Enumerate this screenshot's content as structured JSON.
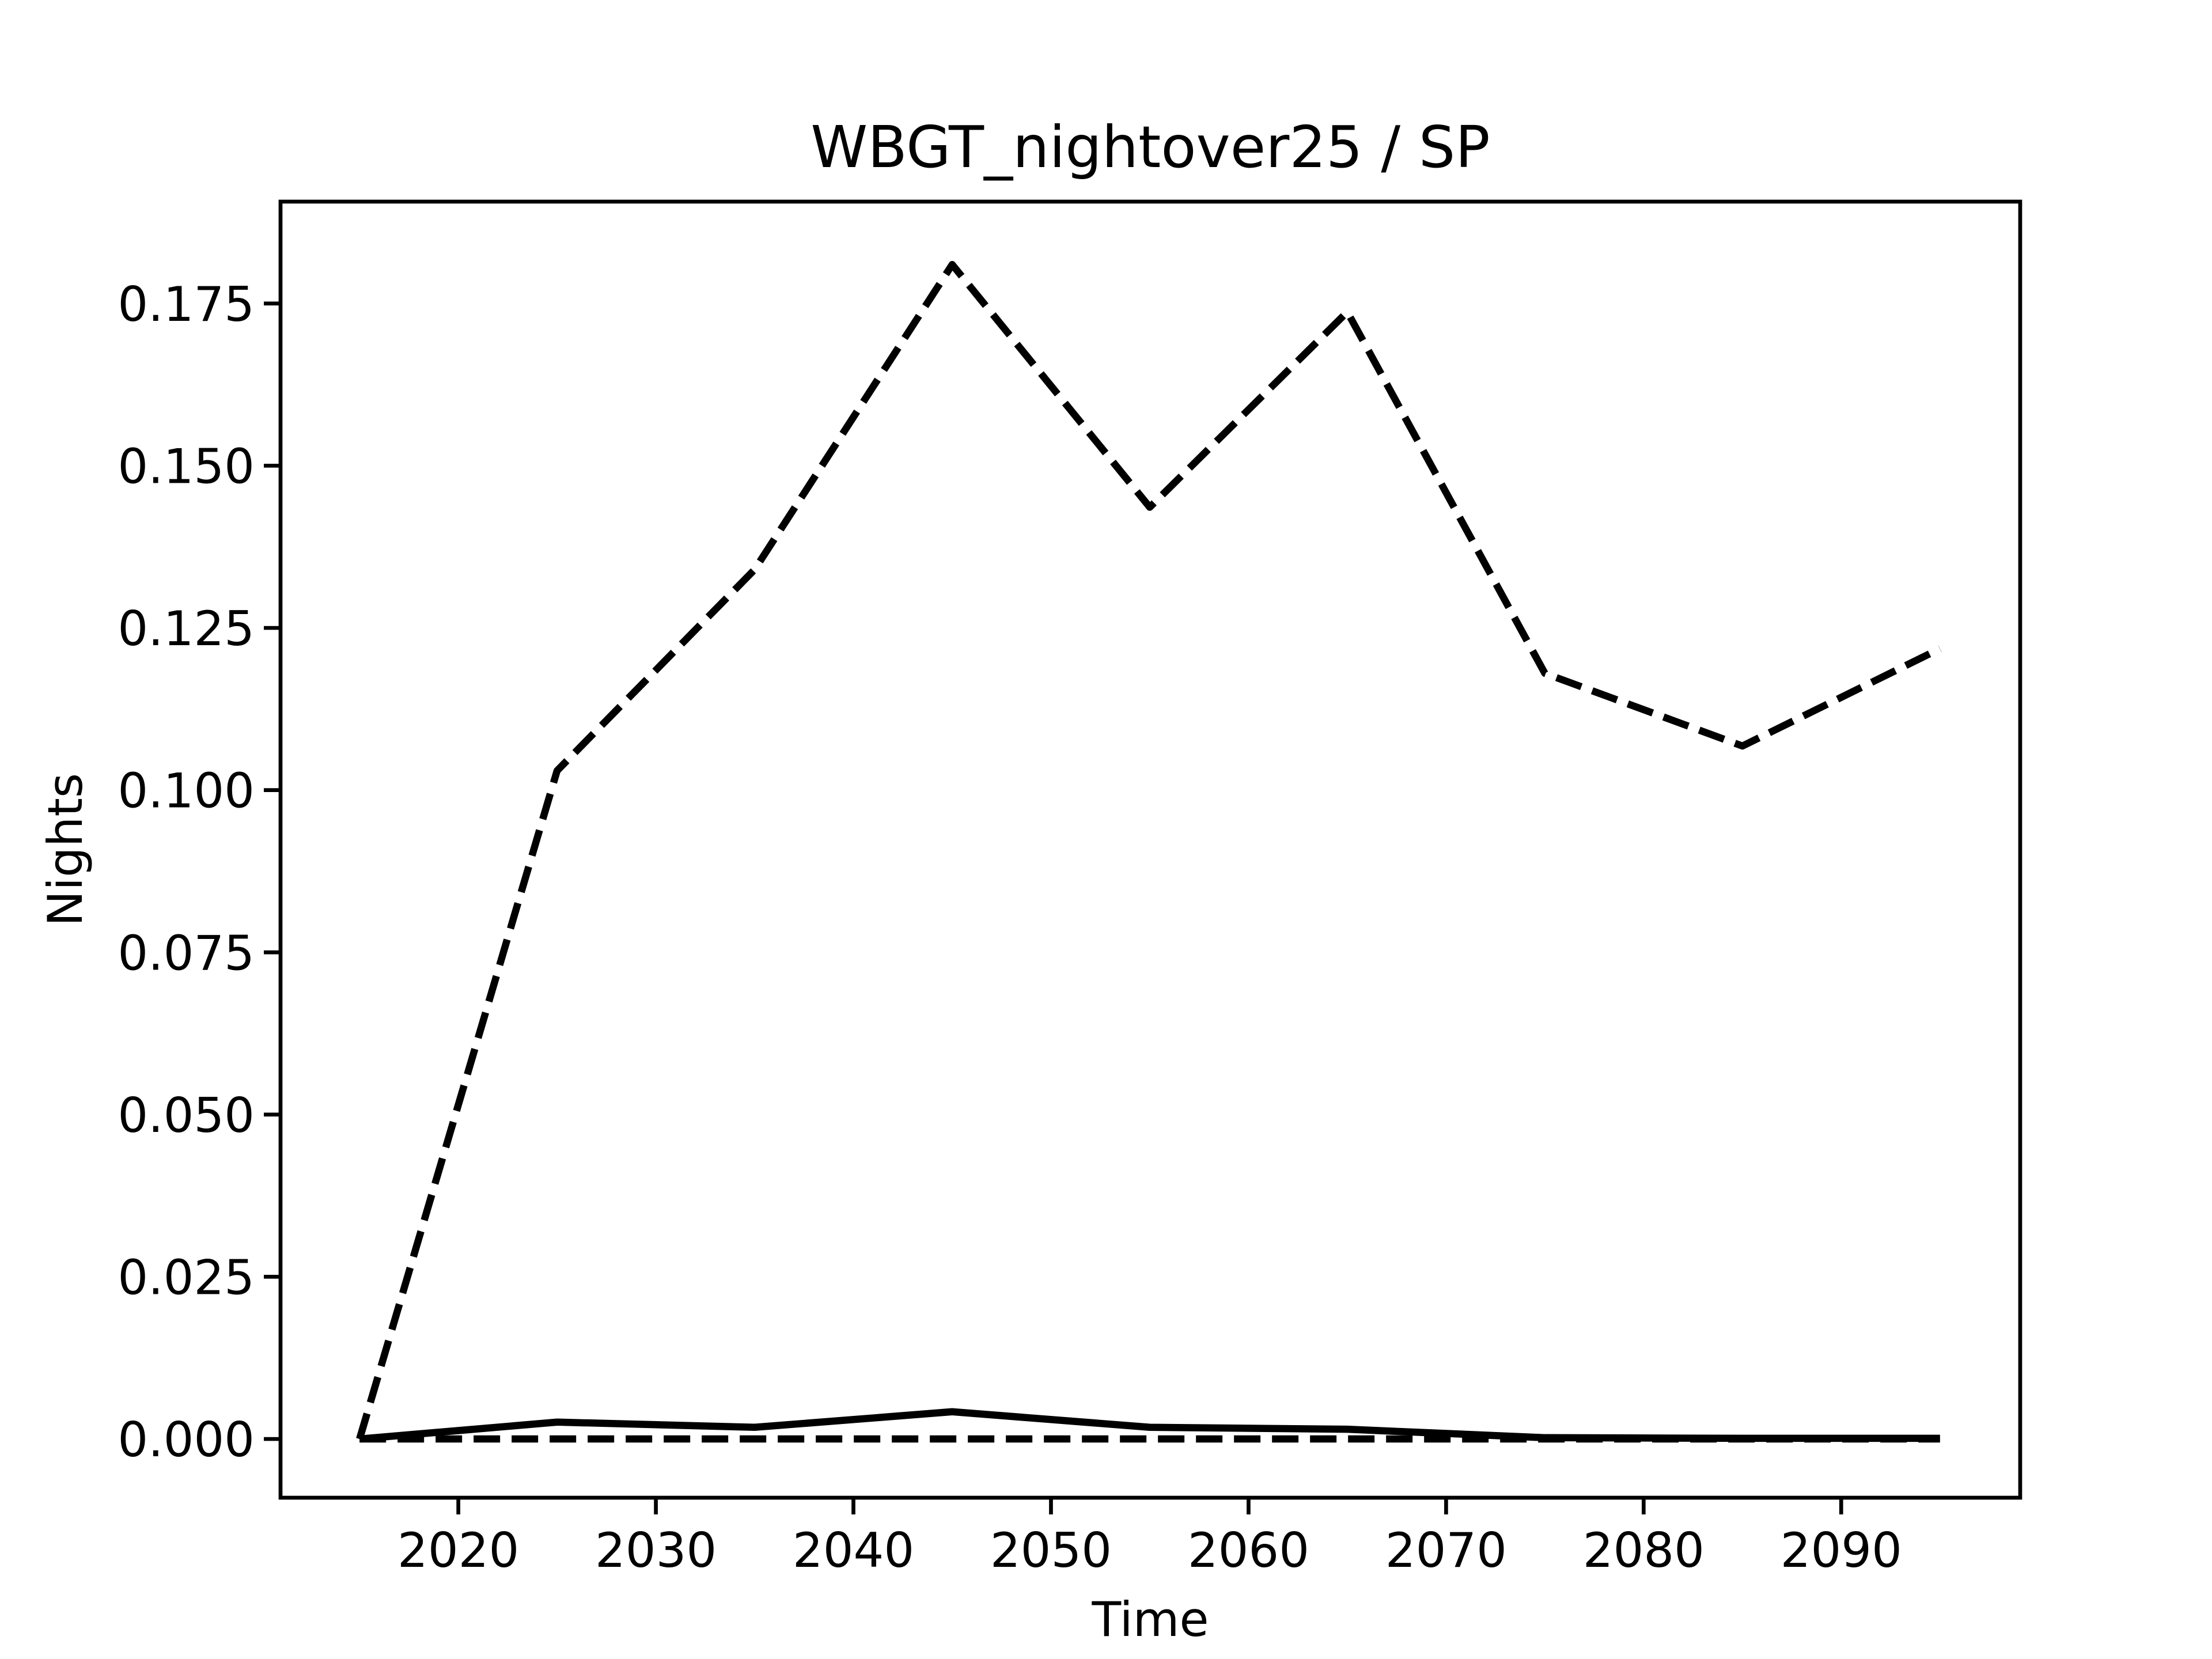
{
  "chart_data": {
    "type": "line",
    "title": "WBGT_nightover25 / SP",
    "xlabel": "Time",
    "ylabel": "Nights",
    "x": [
      2015,
      2025,
      2035,
      2045,
      2055,
      2065,
      2075,
      2085,
      2095
    ],
    "series": [
      {
        "color": "#000000",
        "dashed": true,
        "values": [
          0,
          0.103,
          0.134,
          0.181,
          0.1436,
          0.1737,
          0.118,
          0.1068,
          0.1218
        ]
      },
      {
        "color": "#000000",
        "dashed": false,
        "values": [
          0,
          0.0026,
          0.0018,
          0.0042,
          0.0018,
          0.0015,
          0.0002,
          0.0001,
          0.0001
        ]
      },
      {
        "color": "#000000",
        "dashed": true,
        "values": [
          0,
          0,
          0,
          0,
          0,
          0,
          0,
          0,
          0
        ]
      }
    ],
    "xlim": [
      2011.0,
      2099.06
    ],
    "xticks": [
      2020,
      2030,
      2040,
      2050,
      2060,
      2070,
      2080,
      2090
    ],
    "ylim": [
      -0.00905,
      0.1907
    ],
    "yticks": [
      {
        "value": 0,
        "label": "0.000"
      },
      {
        "value": 0.025,
        "label": "0.025"
      },
      {
        "value": 0.05,
        "label": "0.050"
      },
      {
        "value": 0.075,
        "label": "0.075"
      },
      {
        "value": 0.1,
        "label": "0.100"
      },
      {
        "value": 0.125,
        "label": "0.125"
      },
      {
        "value": 0.15,
        "label": "0.150"
      },
      {
        "value": 0.175,
        "label": "0.175"
      }
    ],
    "grid": false
  }
}
